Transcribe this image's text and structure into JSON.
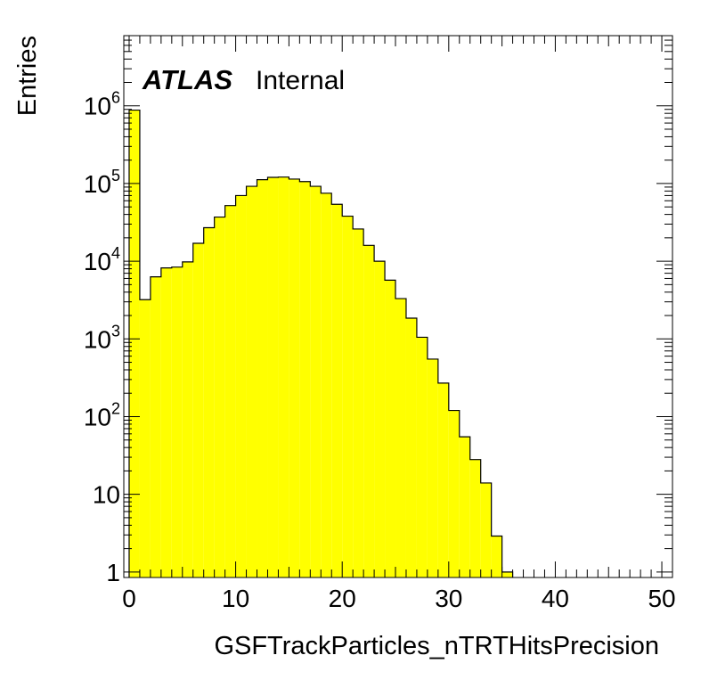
{
  "chart_data": {
    "type": "bar",
    "subtype": "histogram",
    "brand": "ATLAS",
    "status": "Internal",
    "xlabel": "GSFTrackParticles_nTRTHitsPrecision",
    "ylabel": "Entries",
    "xlim": [
      -0.5,
      51
    ],
    "ylim": [
      0.85,
      8000000
    ],
    "y_scale": "log",
    "fill_color": "#ffff00",
    "line_color": "#000000",
    "bin_width": 1,
    "bin_start": 0,
    "values": [
      880000,
      3200,
      6300,
      8200,
      8400,
      9800,
      17000,
      27000,
      37000,
      52000,
      70000,
      92000,
      112000,
      120000,
      121000,
      114000,
      106000,
      92000,
      75000,
      54000,
      38000,
      26000,
      16000,
      10000,
      5700,
      3300,
      1850,
      1050,
      550,
      270,
      120,
      55,
      28,
      14,
      2.9,
      1,
      0,
      0,
      0,
      0,
      0,
      0,
      0,
      0,
      0,
      0,
      0,
      0,
      0,
      0
    ],
    "x_ticks": [
      {
        "value": 0,
        "label": "0"
      },
      {
        "value": 10,
        "label": "10"
      },
      {
        "value": 20,
        "label": "20"
      },
      {
        "value": 30,
        "label": "30"
      },
      {
        "value": 40,
        "label": "40"
      },
      {
        "value": 50,
        "label": "50"
      }
    ],
    "y_ticks": [
      {
        "value": 1,
        "base": "1",
        "exp": ""
      },
      {
        "value": 10,
        "base": "10",
        "exp": ""
      },
      {
        "value": 100,
        "base": "10",
        "exp": "2"
      },
      {
        "value": 1000,
        "base": "10",
        "exp": "3"
      },
      {
        "value": 10000,
        "base": "10",
        "exp": "4"
      },
      {
        "value": 100000,
        "base": "10",
        "exp": "5"
      },
      {
        "value": 1000000,
        "base": "10",
        "exp": "6"
      }
    ]
  }
}
